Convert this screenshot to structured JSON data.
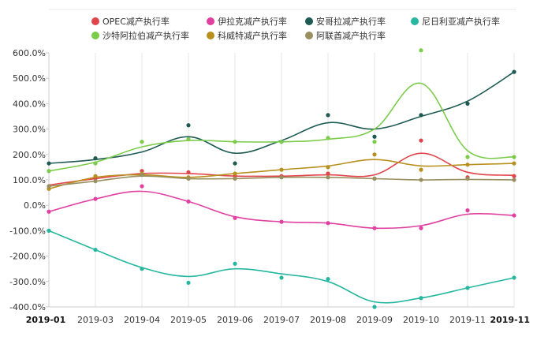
{
  "chart_data": {
    "type": "line",
    "title": "",
    "xlabel": "",
    "ylabel": "",
    "ylim": [
      -400,
      600
    ],
    "yticks": [
      {
        "v": 600,
        "label": "600.0%"
      },
      {
        "v": 500,
        "label": "500.0%"
      },
      {
        "v": 400,
        "label": "400.0%"
      },
      {
        "v": 300,
        "label": "300.0%"
      },
      {
        "v": 200,
        "label": "200.0%"
      },
      {
        "v": 100,
        "label": "100.0%"
      },
      {
        "v": 0,
        "label": "0.0%"
      },
      {
        "v": -100,
        "label": "-100.0%"
      },
      {
        "v": -200,
        "label": "-200.0%"
      },
      {
        "v": -300,
        "label": "-300.0%"
      },
      {
        "v": -400,
        "label": "-400.0%"
      }
    ],
    "x": [
      "2019-01",
      "2019-03",
      "2019-04",
      "2019-05",
      "2019-06",
      "2019-07",
      "2019-08",
      "2019-09",
      "2019-10",
      "2019-11",
      "2019-11"
    ],
    "bold_x_labels": [
      0,
      10
    ],
    "grid": "vertical",
    "legend_position": "top",
    "series": [
      {
        "name": "OPEC减产执行率",
        "color": "#e0454b",
        "points": [
          75,
          105,
          135,
          130,
          115,
          115,
          125,
          105,
          255,
          110,
          115
        ],
        "smooth": [
          80,
          105,
          125,
          125,
          115,
          115,
          120,
          120,
          205,
          130,
          118
        ]
      },
      {
        "name": "伊拉克减产执行率",
        "color": "#e040a0",
        "points": [
          -25,
          25,
          75,
          15,
          -50,
          -65,
          -70,
          -90,
          -90,
          -20,
          -40
        ],
        "smooth": [
          -25,
          25,
          55,
          15,
          -45,
          -65,
          -70,
          -90,
          -80,
          -35,
          -40
        ]
      },
      {
        "name": "安哥拉减产执行率",
        "color": "#1d5a52",
        "points": [
          165,
          185,
          120,
          315,
          165,
          250,
          355,
          270,
          355,
          400,
          525
        ],
        "smooth": [
          165,
          180,
          210,
          270,
          205,
          255,
          325,
          300,
          350,
          410,
          525
        ]
      },
      {
        "name": "尼日利亚减产执行率",
        "color": "#27b7a0",
        "points": [
          -100,
          -175,
          -250,
          -305,
          -230,
          -285,
          -290,
          -400,
          -365,
          -325,
          -285
        ],
        "smooth": [
          -100,
          -175,
          -245,
          -280,
          -250,
          -270,
          -300,
          -380,
          -365,
          -325,
          -285
        ]
      },
      {
        "name": "沙特阿拉伯减产执行率",
        "color": "#7ccc4c",
        "points": [
          135,
          165,
          250,
          260,
          250,
          250,
          265,
          250,
          610,
          190,
          190
        ],
        "smooth": [
          135,
          170,
          230,
          255,
          250,
          250,
          260,
          300,
          480,
          215,
          190
        ]
      },
      {
        "name": "科威特减产执行率",
        "color": "#b8901e",
        "points": [
          65,
          115,
          125,
          110,
          125,
          140,
          150,
          200,
          140,
          160,
          165
        ],
        "smooth": [
          65,
          110,
          120,
          110,
          125,
          140,
          155,
          180,
          155,
          160,
          165
        ]
      },
      {
        "name": "阿联酋减产执行率",
        "color": "#999060",
        "points": [
          75,
          95,
          120,
          105,
          105,
          110,
          110,
          105,
          100,
          105,
          100
        ],
        "smooth": [
          75,
          95,
          115,
          105,
          105,
          110,
          110,
          105,
          100,
          102,
          100
        ]
      }
    ]
  }
}
